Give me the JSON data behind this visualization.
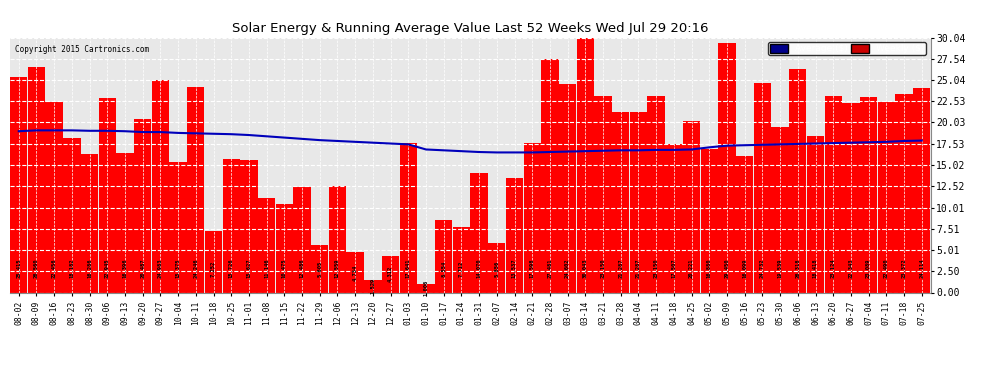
{
  "title": "Solar Energy & Running Average Value Last 52 Weeks Wed Jul 29 20:16",
  "copyright": "Copyright 2015 Cartronics.com",
  "bar_color": "#ff0000",
  "avg_line_color": "#0000bb",
  "background_color": "#ffffff",
  "plot_bg_color": "#e8e8e8",
  "grid_color": "#ffffff",
  "ylim": [
    0,
    30.04
  ],
  "yticks": [
    0.0,
    2.5,
    5.01,
    7.51,
    10.01,
    12.52,
    15.02,
    17.53,
    20.03,
    22.53,
    25.04,
    27.54,
    30.04
  ],
  "categories": [
    "08-02",
    "08-09",
    "08-16",
    "08-23",
    "08-30",
    "09-06",
    "09-13",
    "09-20",
    "09-27",
    "10-04",
    "10-11",
    "10-18",
    "10-25",
    "11-01",
    "11-08",
    "11-15",
    "11-22",
    "11-29",
    "12-06",
    "12-13",
    "12-20",
    "12-27",
    "01-03",
    "01-10",
    "01-17",
    "01-24",
    "01-31",
    "02-07",
    "02-14",
    "02-21",
    "02-28",
    "03-07",
    "03-14",
    "03-21",
    "03-28",
    "04-04",
    "04-11",
    "04-18",
    "04-25",
    "05-02",
    "05-09",
    "05-16",
    "05-23",
    "05-30",
    "06-06",
    "06-13",
    "06-20",
    "06-27",
    "07-04",
    "07-11",
    "07-18",
    "07-25"
  ],
  "weekly_values": [
    25.415,
    26.56,
    22.456,
    18.182,
    16.286,
    22.945,
    16.396,
    20.487,
    24.983,
    15.375,
    24.246,
    7.252,
    15.726,
    15.627,
    11.146,
    10.475,
    12.486,
    5.605,
    12.559,
    4.734,
    1.529,
    4.312,
    17.641,
    1.006,
    8.554,
    7.712,
    14.07,
    5.856,
    13.537,
    17.598,
    27.481,
    24.602,
    30.043,
    23.15,
    21.287,
    21.287,
    23.15,
    17.507,
    20.221,
    16.88,
    29.45,
    16.099,
    24.732,
    19.539,
    26.318,
    18.418,
    23.124,
    22.343,
    23.089,
    22.49,
    23.372,
    24.114
  ],
  "avg_values": [
    19.0,
    19.1,
    19.1,
    19.1,
    19.05,
    19.05,
    19.0,
    18.9,
    18.9,
    18.8,
    18.75,
    18.7,
    18.65,
    18.55,
    18.4,
    18.25,
    18.1,
    17.95,
    17.85,
    17.75,
    17.65,
    17.55,
    17.45,
    16.85,
    16.75,
    16.65,
    16.55,
    16.5,
    16.5,
    16.5,
    16.55,
    16.6,
    16.65,
    16.7,
    16.75,
    16.75,
    16.8,
    16.8,
    16.85,
    17.1,
    17.3,
    17.35,
    17.4,
    17.45,
    17.5,
    17.55,
    17.6,
    17.65,
    17.7,
    17.75,
    17.85,
    17.9
  ],
  "legend_avg_bg": "#00008b",
  "legend_avg_text": "#ffffff",
  "legend_weekly_bg": "#cc0000",
  "legend_weekly_text": "#ffffff"
}
